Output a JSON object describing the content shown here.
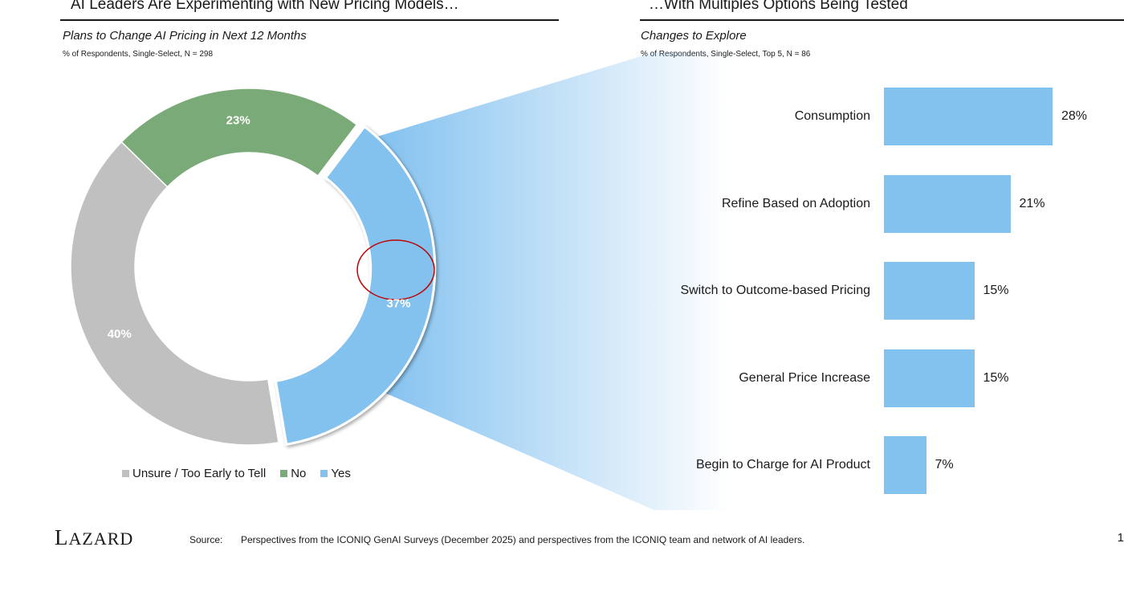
{
  "left_panel": {
    "header": "AI Leaders Are Experimenting with New Pricing Models…",
    "subtitle": "Plans to Change AI Pricing in Next 12 Months",
    "note": "% of Respondents, Single-Select, N = 298"
  },
  "right_panel": {
    "header": "…With Multiples Options Being Tested",
    "subtitle": "Changes to Explore",
    "note": "% of Respondents, Single-Select, Top 5, N = 86"
  },
  "chart_data": [
    {
      "type": "pie",
      "donut": true,
      "title": "Plans to Change AI Pricing in Next 12 Months",
      "slices": [
        {
          "name": "Unsure / Too Early to Tell",
          "value": 40,
          "label": "40%",
          "color": "#c0c0c0"
        },
        {
          "name": "No",
          "value": 23,
          "label": "23%",
          "color": "#7aaa77"
        },
        {
          "name": "Yes",
          "value": 37,
          "label": "37%",
          "color": "#83c1ef",
          "exploded": true,
          "highlighted": true
        }
      ],
      "legend": [
        "Unsure / Too Early to Tell",
        "No",
        "Yes"
      ],
      "legend_position": "bottom"
    },
    {
      "type": "bar",
      "orientation": "horizontal",
      "title": "Changes to Explore",
      "categories": [
        "Consumption",
        "Refine Based on Adoption",
        "Switch to Outcome-based Pricing",
        "General Price Increase",
        "Begin to Charge for AI Product"
      ],
      "values": [
        28,
        21,
        15,
        15,
        7
      ],
      "labels": [
        "28%",
        "21%",
        "15%",
        "15%",
        "7%"
      ],
      "color": "#83c1ef",
      "grid": false
    }
  ],
  "footer": {
    "logo": "LAZARD",
    "source_label": "Source:",
    "source_text": "Perspectives from the ICONIQ GenAI Surveys (December 2025) and perspectives from the ICONIQ team and network of AI leaders.",
    "page_number": "1"
  }
}
